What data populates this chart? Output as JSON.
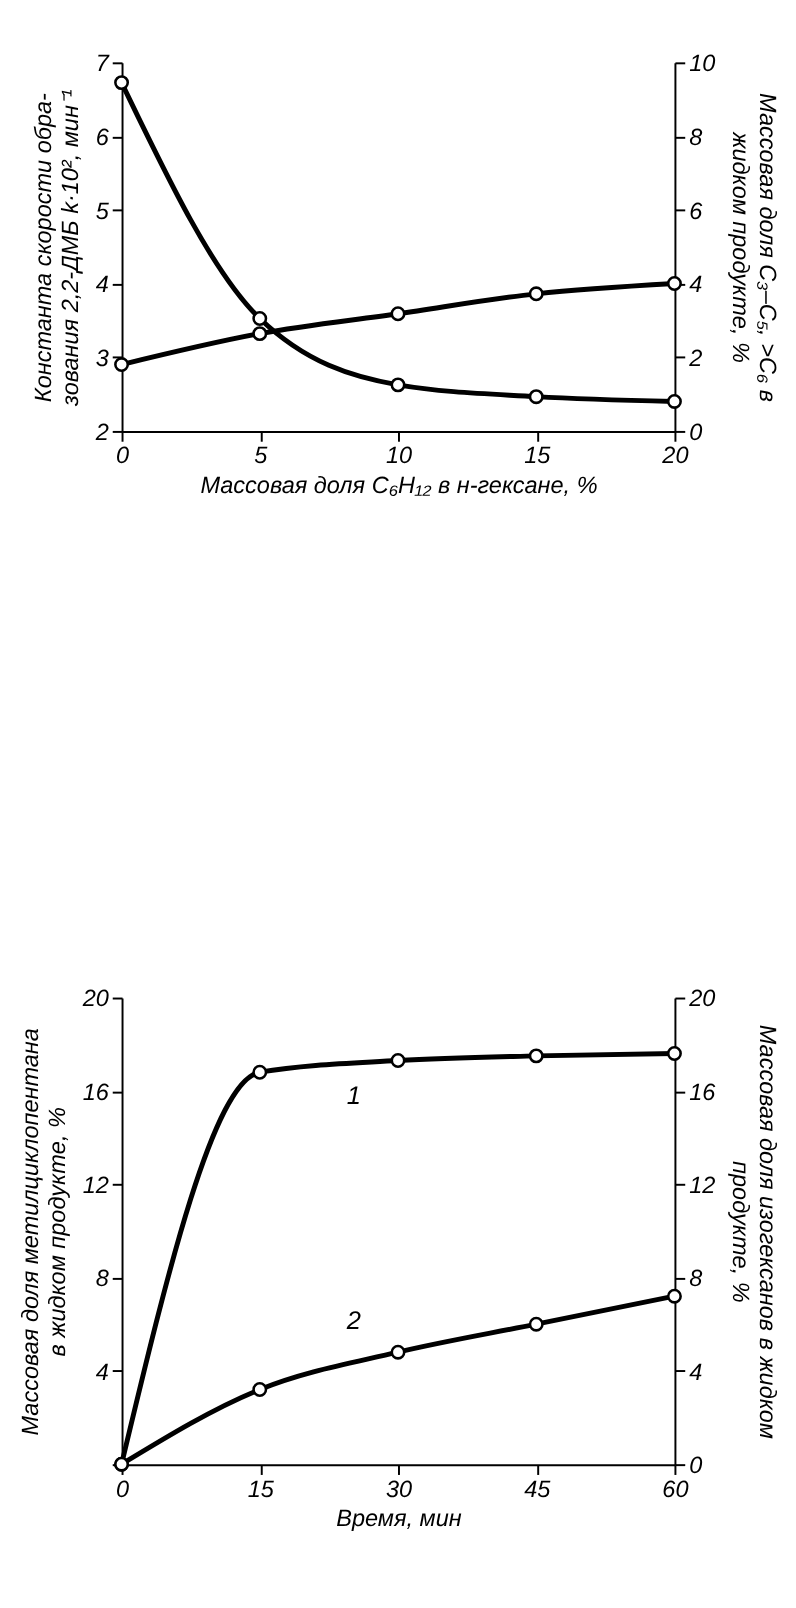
{
  "chart_data": [
    {
      "type": "line",
      "xlabel": "Массовая доля C₆H₁₂ в н-гексане, %",
      "ylabel": "Константа скорости обра-\nзования 2,2-ДМБ k·10², мин⁻¹",
      "y2label": "Массовая доля C₃–C₅, >C₆ в\nжидком продукте, %",
      "x": [
        0,
        5,
        10,
        15,
        20
      ],
      "series": [
        {
          "color": "#000000",
          "values": [
            2.9,
            3.32,
            3.59,
            3.86,
            4.0
          ]
        },
        {
          "color": "#000000",
          "values": [
            9.45,
            3.05,
            1.25,
            0.93,
            0.8
          ],
          "axis": "y2"
        }
      ],
      "xlim": [
        0,
        20
      ],
      "xticks": [
        0,
        5,
        10,
        15,
        20
      ],
      "ylim": [
        2,
        7
      ],
      "yticks": [
        2,
        3,
        4,
        5,
        6,
        7
      ],
      "y2lim": [
        0,
        10
      ],
      "y2ticks": [
        0,
        2,
        4,
        6,
        8,
        10
      ],
      "grid": false,
      "marker": "circle",
      "line_style": "solid"
    },
    {
      "type": "line",
      "xlabel": "Время, мин",
      "ylabel": "Массовая доля метилциклопентана\nв жидком продукте, %",
      "y2label": "Массовая доля изогексанов в жидком\nпродукте, %",
      "x": [
        0,
        15,
        30,
        45,
        60
      ],
      "series": [
        {
          "name": "1",
          "color": "#000000",
          "values": [
            0,
            16.8,
            17.3,
            17.5,
            17.6
          ]
        },
        {
          "name": "2",
          "color": "#000000",
          "values": [
            0,
            3.2,
            4.8,
            6.0,
            7.2
          ],
          "axis": "y2"
        }
      ],
      "xlim": [
        0,
        60
      ],
      "xticks": [
        0,
        15,
        30,
        45,
        60
      ],
      "ylim": [
        0,
        20
      ],
      "yticks": [
        {
          "value": 0,
          "label": null
        },
        4,
        8,
        12,
        16,
        20
      ],
      "y2lim": [
        0,
        20
      ],
      "y2ticks": [
        0,
        4,
        8,
        12,
        16,
        20
      ],
      "grid": false,
      "marker": "circle",
      "line_style": "solid"
    }
  ]
}
